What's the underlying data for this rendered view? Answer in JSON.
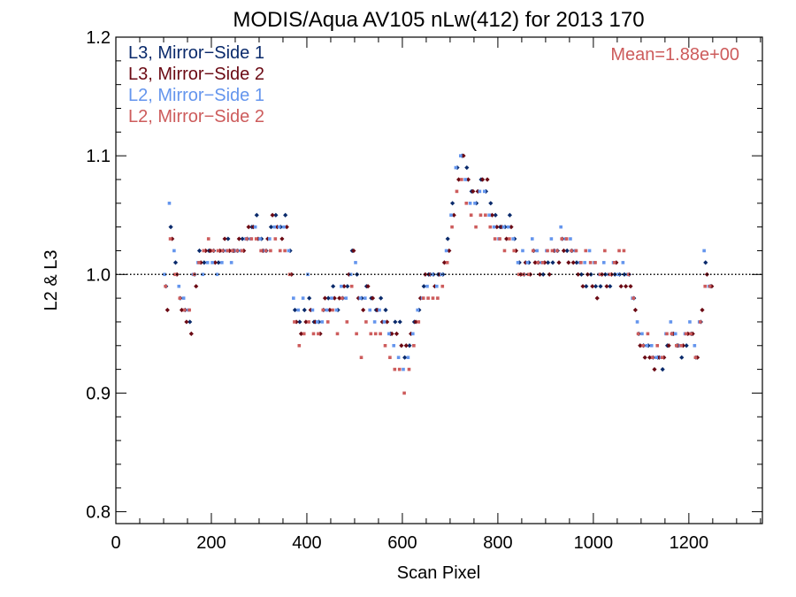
{
  "chart_data": {
    "type": "scatter",
    "title": "MODIS/Aqua AV105 nLw(412) for 2013 170",
    "xlabel": "Scan Pixel",
    "ylabel": "L2 & L3",
    "xlim": [
      0,
      1354
    ],
    "ylim": [
      0.79,
      1.2
    ],
    "xticks": [
      0,
      200,
      400,
      600,
      800,
      1000,
      1200
    ],
    "xtick_labels": [
      "0",
      "200",
      "400",
      "600",
      "800",
      "1000",
      "1200"
    ],
    "yticks": [
      0.8,
      0.9,
      1.0,
      1.1,
      1.2
    ],
    "ytick_labels": [
      "0.8",
      "0.9",
      "1.0",
      "1.1",
      "1.2"
    ],
    "reference_line": {
      "y": 1.0,
      "style": "dotted"
    },
    "annotation": {
      "text": "Mean=1.88e+00",
      "color": "#CD5C5C",
      "placement": "top-right"
    },
    "legend": {
      "placement": "top-left"
    },
    "series": [
      {
        "name": "L3, Mirror−Side 1",
        "color": "#0A2A6B",
        "marker": "diamond",
        "x": [
          105,
          115,
          125,
          135,
          145,
          155,
          165,
          175,
          185,
          195,
          205,
          215,
          225,
          235,
          245,
          255,
          265,
          275,
          285,
          295,
          305,
          315,
          325,
          335,
          345,
          355,
          365,
          375,
          385,
          395,
          405,
          415,
          425,
          435,
          445,
          455,
          465,
          475,
          485,
          495,
          505,
          515,
          525,
          535,
          545,
          555,
          565,
          575,
          585,
          595,
          605,
          615,
          625,
          635,
          645,
          655,
          665,
          675,
          685,
          695,
          705,
          715,
          725,
          735,
          745,
          755,
          765,
          775,
          785,
          795,
          805,
          815,
          825,
          835,
          845,
          855,
          865,
          875,
          885,
          895,
          905,
          915,
          925,
          935,
          945,
          955,
          965,
          975,
          985,
          995,
          1005,
          1015,
          1025,
          1035,
          1045,
          1055,
          1065,
          1075,
          1085,
          1095,
          1105,
          1115,
          1125,
          1135,
          1145,
          1155,
          1165,
          1175,
          1185,
          1195,
          1205,
          1215,
          1225,
          1235,
          1245
        ],
        "y": [
          0.99,
          1.04,
          1.01,
          0.98,
          0.97,
          0.96,
          1.0,
          1.02,
          1.01,
          1.02,
          1.02,
          1.01,
          1.02,
          1.03,
          1.02,
          1.02,
          1.03,
          1.03,
          1.04,
          1.05,
          1.03,
          1.02,
          1.04,
          1.05,
          1.04,
          1.05,
          1.02,
          0.97,
          0.96,
          0.97,
          0.98,
          0.96,
          0.96,
          0.97,
          0.98,
          0.99,
          0.97,
          0.98,
          0.99,
          1.02,
          1.0,
          0.98,
          0.99,
          0.98,
          0.97,
          0.98,
          0.97,
          0.95,
          0.96,
          0.96,
          0.93,
          0.94,
          0.96,
          0.97,
          0.99,
          1.0,
          1.0,
          1.0,
          1.0,
          1.03,
          1.06,
          1.09,
          1.1,
          1.09,
          1.07,
          1.06,
          1.08,
          1.07,
          1.06,
          1.05,
          1.04,
          1.04,
          1.05,
          1.03,
          1.01,
          1.0,
          1.01,
          1.02,
          1.01,
          1.0,
          1.01,
          1.01,
          1.02,
          1.03,
          1.02,
          1.02,
          1.01,
          1.0,
          0.99,
          1.0,
          0.99,
          0.99,
          1.0,
          0.99,
          1.0,
          1.0,
          1.0,
          1.0,
          0.98,
          0.95,
          0.94,
          0.94,
          0.93,
          0.93,
          0.92,
          0.94,
          0.95,
          0.94,
          0.93,
          0.94,
          0.95,
          0.93,
          0.96,
          1.01,
          0.99
        ]
      },
      {
        "name": "L3, Mirror−Side 2",
        "color": "#6B0A14",
        "marker": "diamond",
        "x": [
          108,
          118,
          128,
          138,
          148,
          158,
          168,
          178,
          188,
          198,
          208,
          218,
          228,
          238,
          248,
          258,
          268,
          278,
          288,
          298,
          308,
          318,
          328,
          338,
          348,
          358,
          368,
          378,
          388,
          398,
          408,
          418,
          428,
          438,
          448,
          458,
          468,
          478,
          488,
          498,
          508,
          518,
          528,
          538,
          548,
          558,
          568,
          578,
          588,
          598,
          608,
          618,
          628,
          638,
          648,
          658,
          668,
          678,
          688,
          698,
          708,
          718,
          728,
          738,
          748,
          758,
          768,
          778,
          788,
          798,
          808,
          818,
          828,
          838,
          848,
          858,
          868,
          878,
          888,
          898,
          908,
          918,
          928,
          938,
          948,
          958,
          968,
          978,
          988,
          998,
          1008,
          1018,
          1028,
          1038,
          1048,
          1058,
          1068,
          1078,
          1088,
          1098,
          1108,
          1118,
          1128,
          1138,
          1148,
          1158,
          1168,
          1178,
          1188,
          1198,
          1208,
          1218,
          1228,
          1238,
          1248
        ],
        "y": [
          0.97,
          1.03,
          1.0,
          0.97,
          0.96,
          0.95,
          0.99,
          1.01,
          1.02,
          1.02,
          1.01,
          1.02,
          1.03,
          1.02,
          1.02,
          1.03,
          1.02,
          1.04,
          1.04,
          1.03,
          1.02,
          1.03,
          1.05,
          1.04,
          1.03,
          1.04,
          1.0,
          0.96,
          0.95,
          0.96,
          0.97,
          0.96,
          0.95,
          0.98,
          0.97,
          0.98,
          0.98,
          0.99,
          1.0,
          1.02,
          0.98,
          0.97,
          0.99,
          0.98,
          0.97,
          0.96,
          0.96,
          0.95,
          0.95,
          0.94,
          0.94,
          0.95,
          0.96,
          0.98,
          1.0,
          1.0,
          0.99,
          1.0,
          1.01,
          1.02,
          1.05,
          1.08,
          1.1,
          1.08,
          1.07,
          1.07,
          1.08,
          1.08,
          1.05,
          1.04,
          1.04,
          1.03,
          1.04,
          1.02,
          1.0,
          1.01,
          1.0,
          1.01,
          1.0,
          1.01,
          1.0,
          1.02,
          1.01,
          1.02,
          1.01,
          1.01,
          1.0,
          0.99,
          1.0,
          0.99,
          0.98,
          1.0,
          0.99,
          1.0,
          1.01,
          0.99,
          0.99,
          0.99,
          0.97,
          0.94,
          0.93,
          0.93,
          0.92,
          0.93,
          0.93,
          0.94,
          0.95,
          0.94,
          0.94,
          0.95,
          0.95,
          0.93,
          0.97,
          1.0,
          0.99
        ]
      },
      {
        "name": "L2, Mirror−Side 1",
        "color": "#6495ED",
        "marker": "square",
        "x": [
          102,
          112,
          122,
          132,
          142,
          152,
          162,
          172,
          182,
          192,
          202,
          212,
          222,
          232,
          242,
          252,
          262,
          272,
          282,
          292,
          302,
          312,
          322,
          332,
          342,
          352,
          362,
          372,
          382,
          392,
          402,
          412,
          422,
          432,
          442,
          452,
          462,
          472,
          482,
          492,
          502,
          512,
          522,
          532,
          542,
          552,
          562,
          572,
          582,
          592,
          602,
          612,
          622,
          632,
          642,
          652,
          662,
          672,
          682,
          692,
          702,
          712,
          722,
          732,
          742,
          752,
          762,
          772,
          782,
          792,
          802,
          812,
          822,
          832,
          842,
          852,
          862,
          872,
          882,
          892,
          902,
          912,
          922,
          932,
          942,
          952,
          962,
          972,
          982,
          992,
          1002,
          1012,
          1022,
          1032,
          1042,
          1052,
          1062,
          1072,
          1082,
          1092,
          1102,
          1112,
          1122,
          1132,
          1142,
          1152,
          1162,
          1172,
          1182,
          1192,
          1202,
          1212,
          1222,
          1232,
          1242
        ],
        "y": [
          1.0,
          1.06,
          1.02,
          0.99,
          0.98,
          0.97,
          1.0,
          1.01,
          1.0,
          1.01,
          1.01,
          1.0,
          1.01,
          1.02,
          1.01,
          1.02,
          1.02,
          1.03,
          1.03,
          1.04,
          1.03,
          1.02,
          1.03,
          1.04,
          1.04,
          1.04,
          1.02,
          0.98,
          0.97,
          0.98,
          1.0,
          0.97,
          0.96,
          0.96,
          0.97,
          0.98,
          0.97,
          0.99,
          0.98,
          1.0,
          1.01,
          0.98,
          0.98,
          0.97,
          0.96,
          0.97,
          0.96,
          0.95,
          0.94,
          0.93,
          0.92,
          0.93,
          0.95,
          0.97,
          0.98,
          0.99,
          1.0,
          0.99,
          1.0,
          1.02,
          1.05,
          1.09,
          1.1,
          1.08,
          1.06,
          1.06,
          1.07,
          1.07,
          1.05,
          1.04,
          1.03,
          1.04,
          1.04,
          1.03,
          1.01,
          1.02,
          1.01,
          1.03,
          1.02,
          1.01,
          1.02,
          1.03,
          1.02,
          1.04,
          1.03,
          1.03,
          1.02,
          1.01,
          1.01,
          1.02,
          1.01,
          1.0,
          1.01,
          1.0,
          1.01,
          1.0,
          1.01,
          1.0,
          0.98,
          0.96,
          0.95,
          0.94,
          0.94,
          0.93,
          0.93,
          0.95,
          0.96,
          0.95,
          0.94,
          0.95,
          0.96,
          0.94,
          0.96,
          1.02,
          0.99
        ]
      },
      {
        "name": "L2, Mirror−Side 2",
        "color": "#CD5C5C",
        "marker": "square",
        "x": [
          104,
          114,
          124,
          134,
          144,
          154,
          164,
          174,
          184,
          194,
          204,
          214,
          224,
          234,
          244,
          254,
          264,
          274,
          284,
          294,
          304,
          314,
          324,
          334,
          344,
          354,
          364,
          374,
          384,
          394,
          404,
          414,
          424,
          434,
          444,
          454,
          464,
          474,
          484,
          494,
          504,
          514,
          524,
          534,
          544,
          554,
          564,
          574,
          584,
          594,
          604,
          614,
          624,
          634,
          644,
          654,
          664,
          674,
          684,
          694,
          704,
          714,
          724,
          734,
          744,
          754,
          764,
          774,
          784,
          794,
          804,
          814,
          824,
          834,
          844,
          854,
          864,
          874,
          884,
          894,
          904,
          914,
          924,
          934,
          944,
          954,
          964,
          974,
          984,
          994,
          1004,
          1014,
          1024,
          1034,
          1044,
          1054,
          1064,
          1074,
          1084,
          1094,
          1104,
          1114,
          1124,
          1134,
          1144,
          1154,
          1164,
          1174,
          1184,
          1194,
          1204,
          1214,
          1224,
          1234,
          1244
        ],
        "y": [
          0.99,
          1.03,
          1.0,
          0.98,
          0.97,
          0.97,
          1.0,
          1.01,
          1.02,
          1.03,
          1.02,
          1.02,
          1.02,
          1.02,
          1.02,
          1.02,
          1.02,
          1.03,
          1.03,
          1.03,
          1.02,
          1.02,
          1.02,
          1.03,
          1.02,
          1.02,
          1.0,
          0.96,
          0.94,
          0.95,
          0.96,
          0.95,
          0.95,
          0.97,
          0.96,
          0.97,
          0.95,
          0.98,
          0.96,
          0.99,
          0.95,
          0.93,
          0.96,
          0.95,
          0.95,
          0.95,
          0.94,
          0.93,
          0.92,
          0.92,
          0.9,
          0.92,
          0.94,
          0.96,
          0.98,
          0.98,
          0.98,
          0.98,
          0.99,
          1.01,
          1.04,
          1.07,
          1.08,
          1.06,
          1.05,
          1.04,
          1.05,
          1.05,
          1.04,
          1.03,
          1.03,
          1.02,
          1.03,
          1.02,
          1.0,
          1.0,
          1.0,
          1.02,
          1.01,
          1.01,
          1.02,
          1.02,
          1.02,
          1.03,
          1.03,
          1.02,
          1.02,
          1.01,
          1.02,
          1.01,
          1.01,
          1.0,
          1.02,
          1.0,
          1.01,
          1.02,
          1.02,
          1.0,
          0.98,
          0.95,
          0.94,
          0.95,
          0.93,
          0.94,
          0.93,
          0.95,
          0.95,
          0.94,
          0.94,
          0.95,
          0.95,
          0.93,
          0.96,
          0.99,
          0.99
        ]
      }
    ]
  }
}
